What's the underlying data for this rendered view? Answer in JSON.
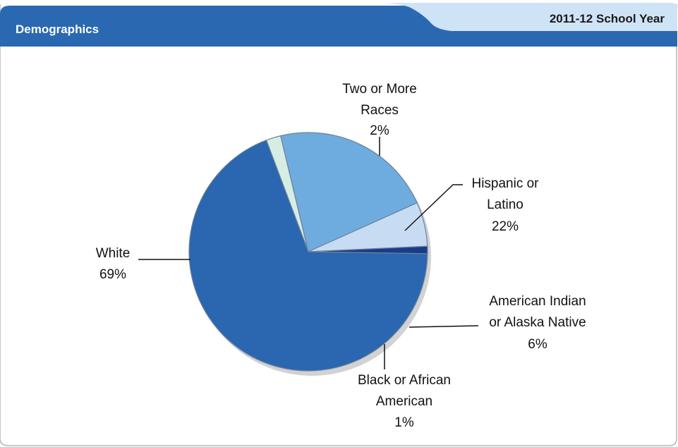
{
  "header": {
    "title": "Demographics",
    "school_year": "2011-12 School Year"
  },
  "colors": {
    "header_blue": "#2a68b2",
    "tab_light": "#cfe3f6",
    "slice_border": "#6e8299"
  },
  "chart_data": {
    "type": "pie",
    "title": "",
    "start_angle_deg": 0,
    "slices": [
      {
        "name": "Two or More Races",
        "label_lines": [
          "Two or More",
          "Races"
        ],
        "pct_label": "2%",
        "value": 2,
        "color": "#d6ede4"
      },
      {
        "name": "Hispanic or Latino",
        "label_lines": [
          "Hispanic or",
          "Latino"
        ],
        "pct_label": "22%",
        "value": 22,
        "color": "#6eabdf"
      },
      {
        "name": "American Indian or Alaska Native",
        "label_lines": [
          "American Indian",
          "or Alaska Native"
        ],
        "pct_label": "6%",
        "value": 6,
        "color": "#c7dcf3"
      },
      {
        "name": "Black or African American",
        "label_lines": [
          "Black or African",
          "American"
        ],
        "pct_label": "1%",
        "value": 1,
        "color": "#1a3b8a"
      },
      {
        "name": "White",
        "label_lines": [
          "White"
        ],
        "pct_label": "69%",
        "value": 69,
        "color": "#2a67b0"
      }
    ]
  }
}
